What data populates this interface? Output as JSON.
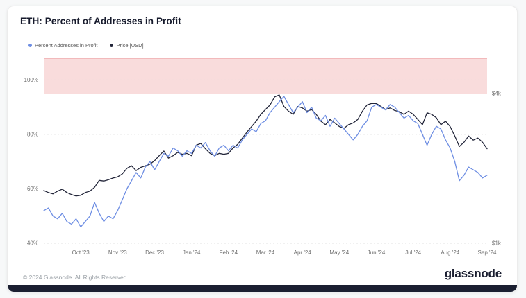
{
  "card": {
    "title": "ETH: Percent of Addresses in Profit"
  },
  "legend": {
    "items": [
      {
        "label": "Percent Addresses in Profit",
        "color": "#6e8ee3"
      },
      {
        "label": "Price [USD]",
        "color": "#23263a"
      }
    ]
  },
  "footer": {
    "copyright": "© 2024 Glassnode. All Rights Reserved.",
    "brand": "glassnode"
  },
  "chart_data": {
    "type": "line",
    "title": "ETH: Percent of Addresses in Profit",
    "grid": "horizontal-dashed",
    "legend_position": "top-left",
    "x_tick_labels": [
      "Oct '23",
      "Nov '23",
      "Dec '23",
      "Jan '24",
      "Feb '24",
      "Mar '24",
      "Apr '24",
      "May '24",
      "Jun '24",
      "Jul '24",
      "Aug '24",
      "Sep '24"
    ],
    "y_left": {
      "tick_labels": [
        "40%",
        "60%",
        "80%",
        "100%"
      ],
      "tick_values": [
        40,
        60,
        80,
        100
      ],
      "bottom_pct": 40,
      "top_pct": 108
    },
    "y_right": {
      "tick_labels": [
        "$1k",
        "$4k"
      ],
      "scale": "log",
      "refs": [
        {
          "usd": 1000,
          "pct": 40
        },
        {
          "usd": 4000,
          "pct": 95
        }
      ]
    },
    "band": {
      "from_pct": 95,
      "to_pct": 108,
      "fill": "#f9dcdc",
      "top_line": "#f2b9bb"
    },
    "grid_color": "#e0e0e0",
    "series": [
      {
        "name": "Percent Addresses in Profit",
        "unit": "%",
        "color": "#6e8ee3",
        "values": [
          52,
          53,
          50,
          49,
          51,
          48,
          47,
          49,
          46,
          48,
          50,
          55,
          51,
          48,
          50,
          49,
          52,
          56,
          60,
          63,
          66,
          64,
          68,
          70,
          67,
          70,
          73,
          72,
          75,
          74,
          72,
          74,
          73,
          76,
          75,
          77,
          74,
          72,
          75,
          76,
          74,
          76,
          75,
          78,
          80,
          82,
          81,
          84,
          85,
          88,
          90,
          92,
          94,
          91,
          88,
          90,
          92,
          88,
          90,
          86,
          85,
          87,
          83,
          86,
          84,
          82,
          80,
          78,
          80,
          83,
          85,
          90,
          91,
          90,
          89,
          91,
          90,
          88,
          86,
          87,
          85,
          84,
          80,
          76,
          80,
          83,
          82,
          78,
          75,
          70,
          63,
          65,
          68,
          67,
          66,
          64,
          65
        ]
      },
      {
        "name": "Price [USD]",
        "unit": "USD",
        "color": "#23263a",
        "values": [
          1630,
          1600,
          1580,
          1620,
          1650,
          1600,
          1570,
          1550,
          1560,
          1600,
          1620,
          1680,
          1790,
          1780,
          1800,
          1830,
          1850,
          1900,
          2000,
          2050,
          1960,
          2020,
          2050,
          2080,
          2150,
          2250,
          2350,
          2200,
          2250,
          2320,
          2280,
          2300,
          2250,
          2480,
          2520,
          2400,
          2300,
          2250,
          2300,
          2280,
          2300,
          2420,
          2500,
          2650,
          2800,
          2950,
          3100,
          3300,
          3450,
          3600,
          3880,
          3950,
          3550,
          3400,
          3300,
          3550,
          3500,
          3400,
          3450,
          3300,
          3100,
          3000,
          3150,
          3050,
          2950,
          2900,
          3000,
          3050,
          3150,
          3400,
          3600,
          3650,
          3650,
          3550,
          3450,
          3500,
          3420,
          3380,
          3300,
          3400,
          3300,
          3150,
          3000,
          3350,
          3300,
          3200,
          3000,
          3100,
          2950,
          2700,
          2450,
          2550,
          2700,
          2600,
          2650,
          2550,
          2400
        ]
      }
    ]
  }
}
